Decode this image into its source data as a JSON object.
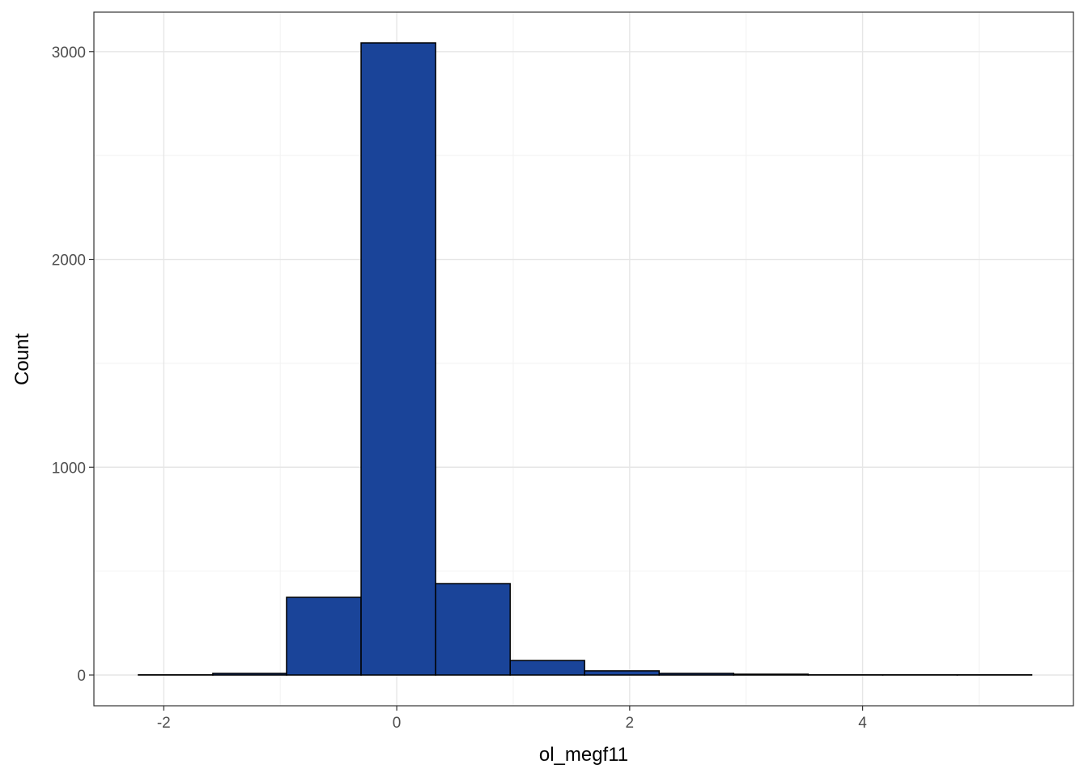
{
  "chart_data": {
    "type": "histogram",
    "x_label": "ol_megf11",
    "y_label": "Count",
    "bins": [
      -2.218,
      -1.579,
      -0.946,
      -0.306,
      0.334,
      0.974,
      1.613,
      2.253,
      2.893,
      3.533,
      4.173,
      4.812,
      5.452
    ],
    "values": [
      1,
      8,
      374,
      3042,
      440,
      70,
      20,
      8,
      4,
      1,
      1,
      1
    ],
    "color": "#1a4499",
    "edge_color": "#000000",
    "xlim": [
      -2.6,
      5.81
    ],
    "ylim": [
      -148,
      3190
    ],
    "xticks": [
      -2,
      0,
      2,
      4
    ],
    "yticks": [
      0,
      1000,
      2000,
      3000
    ],
    "x_minor_ticks": [
      -1,
      1,
      3,
      5
    ],
    "y_minor_ticks": [
      500,
      1500,
      2500
    ],
    "grid": true
  }
}
